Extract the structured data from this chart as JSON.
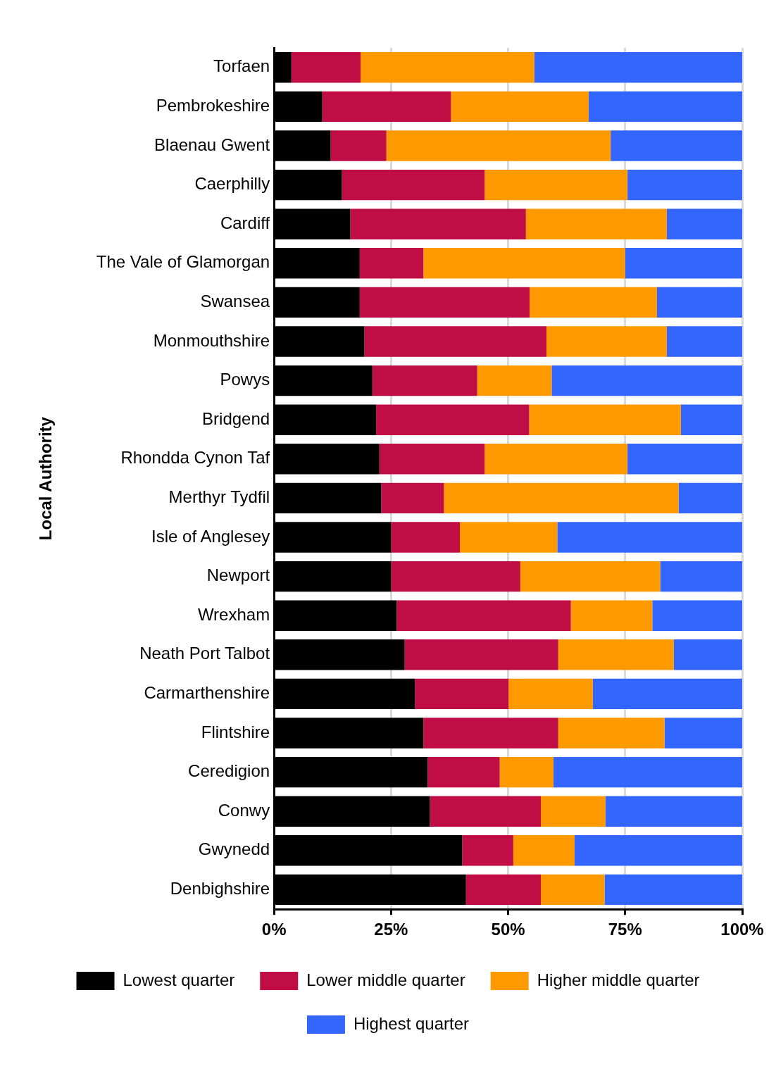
{
  "chart_data": {
    "type": "bar",
    "orientation": "horizontal",
    "stacked": true,
    "ylabel": "Local Authority",
    "categories": [
      "Torfaen",
      "Pembrokeshire",
      "Blaenau Gwent",
      "Caerphilly",
      "Cardiff",
      "The Vale of Glamorgan",
      "Swansea",
      "Monmouthshire",
      "Powys",
      "Bridgend",
      "Rhondda Cynon Taf",
      "Merthyr Tydfil",
      "Isle of Anglesey",
      "Newport",
      "Wrexham",
      "Neath Port Talbot",
      "Carmarthenshire",
      "Flintshire",
      "Ceredigion",
      "Conwy",
      "Gwynedd",
      "Denbighshire"
    ],
    "series": [
      {
        "name": "Lowest quarter",
        "color": "#000000",
        "values": [
          3.7,
          10.3,
          12.1,
          14.5,
          16.3,
          18.3,
          18.3,
          19.3,
          21.0,
          21.8,
          22.5,
          22.9,
          25.0,
          25.0,
          26.2,
          27.9,
          30.1,
          31.9,
          32.8,
          33.3,
          40.2,
          41.0
        ]
      },
      {
        "name": "Lower middle quarter",
        "color": "#c00d45",
        "values": [
          14.8,
          27.5,
          11.9,
          30.5,
          37.5,
          13.6,
          36.3,
          38.9,
          22.4,
          32.7,
          22.5,
          13.4,
          14.7,
          27.6,
          37.2,
          32.8,
          20.0,
          28.8,
          15.4,
          23.7,
          10.9,
          16.0
        ]
      },
      {
        "name": "Higher middle quarter",
        "color": "#ff9900",
        "values": [
          37.1,
          29.4,
          47.9,
          30.5,
          30.1,
          43.1,
          27.2,
          25.7,
          15.9,
          32.4,
          30.5,
          50.1,
          20.8,
          29.9,
          17.4,
          24.7,
          18.0,
          22.7,
          11.5,
          13.8,
          13.1,
          13.6
        ]
      },
      {
        "name": "Highest quarter",
        "color": "#3366ff",
        "values": [
          44.4,
          32.8,
          28.1,
          24.5,
          16.1,
          25.0,
          18.2,
          16.1,
          40.7,
          13.1,
          24.5,
          13.6,
          39.5,
          17.5,
          19.2,
          14.6,
          31.9,
          16.6,
          40.3,
          29.2,
          35.8,
          29.4
        ]
      }
    ],
    "xlim": [
      0,
      100
    ],
    "xticks": [
      {
        "value": 0,
        "label": "0%"
      },
      {
        "value": 25,
        "label": "25%"
      },
      {
        "value": 50,
        "label": "50%"
      },
      {
        "value": 75,
        "label": "75%"
      },
      {
        "value": 100,
        "label": "100%"
      }
    ],
    "grid": "x",
    "legend": "bottom"
  }
}
